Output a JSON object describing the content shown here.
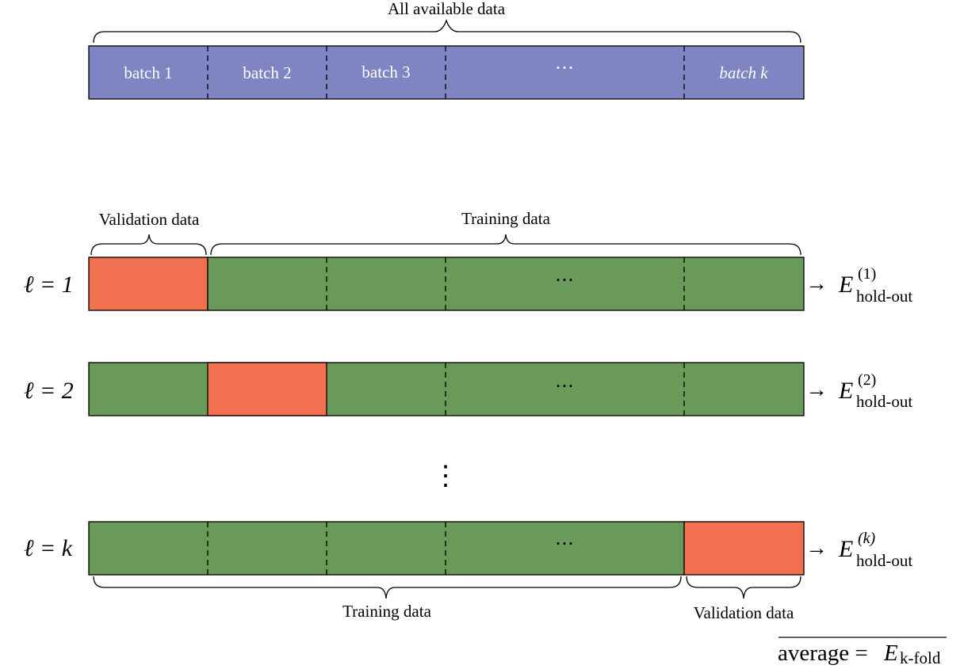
{
  "top": {
    "label": "All available data",
    "batches": [
      "batch 1",
      "batch 2",
      "batch 3",
      "⋯",
      "batch k"
    ]
  },
  "rows": [
    {
      "label": "ℓ = 1",
      "validation_index": 0,
      "result_E": "E",
      "result_sup": "(1)",
      "result_sub": "hold-out"
    },
    {
      "label": "ℓ = 2",
      "validation_index": 1,
      "result_E": "E",
      "result_sup": "(2)",
      "result_sub": "hold-out"
    },
    {
      "label": "ℓ = k",
      "validation_index": 4,
      "result_E": "E",
      "result_sup": "(k)",
      "result_sub": "hold-out"
    }
  ],
  "row_ellipsis": "⋯",
  "vertical_ellipsis": "⋮",
  "arrow": "→",
  "first_row_braces": {
    "validation": "Validation data",
    "training": "Training data"
  },
  "last_row_braces": {
    "training": "Training data",
    "validation": "Validation data"
  },
  "average": {
    "prefix": "average = ",
    "E": "E",
    "sub": "k-fold"
  },
  "colors": {
    "all_data": "#7f85c2",
    "training": "#6a9a59",
    "validation": "#f07050",
    "stroke": "#000000"
  }
}
